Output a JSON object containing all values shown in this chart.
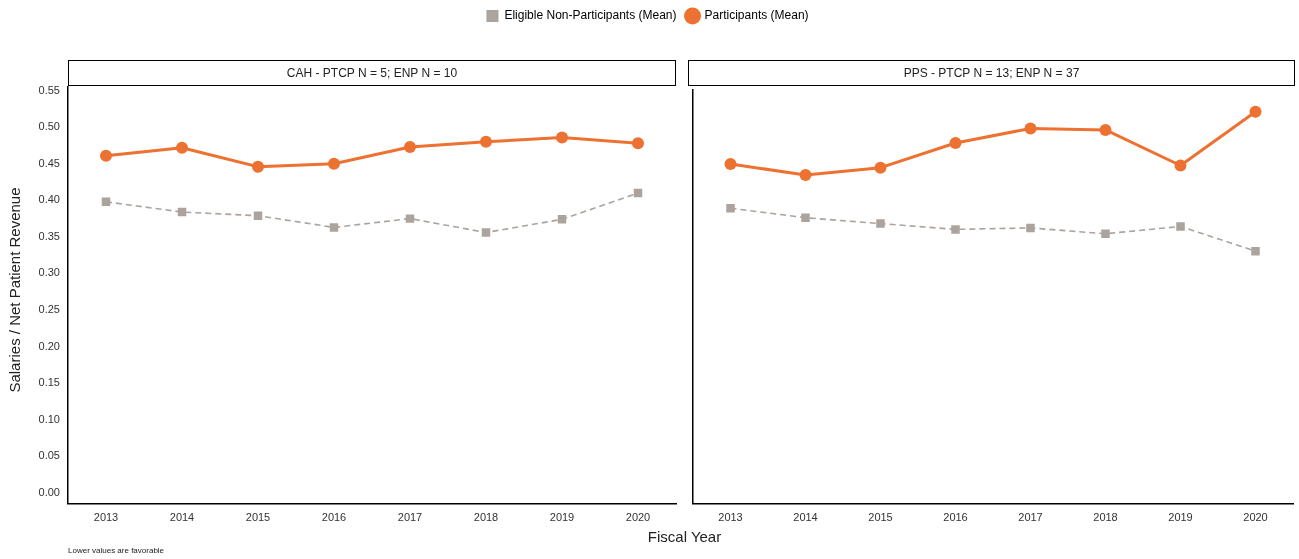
{
  "chart_data": [
    {
      "type": "line",
      "title": "CAH - PTCP N = 5; ENP N = 10",
      "xlabel": "Fiscal Year",
      "ylabel": "Salaries / Net Patient Revenue",
      "annotations": [
        "Lower values are favorable"
      ],
      "legend": "top",
      "grid": false,
      "categories": [
        "2013",
        "2014",
        "2015",
        "2016",
        "2017",
        "2018",
        "2019",
        "2020"
      ],
      "ylim": [
        -0.015,
        0.555
      ],
      "yticks": [
        {
          "value": 0,
          "label": "0.00"
        },
        {
          "value": 0.05,
          "label": "0.05"
        },
        {
          "value": 0.1,
          "label": "0.10"
        },
        {
          "value": 0.15,
          "label": "0.15"
        },
        {
          "value": 0.2,
          "label": "0.20"
        },
        {
          "value": 0.25,
          "label": "0.25"
        },
        {
          "value": 0.3,
          "label": "0.30"
        },
        {
          "value": 0.35,
          "label": "0.35"
        },
        {
          "value": 0.4,
          "label": "0.40"
        },
        {
          "value": 0.45,
          "label": "0.45"
        },
        {
          "value": 0.5,
          "label": "0.50"
        },
        {
          "value": 0.55,
          "label": "0.55"
        }
      ],
      "series": [
        {
          "name": "Eligible Non-Participants (Mean)",
          "color": "#aba39d",
          "marker": "square",
          "line_style": "dashed",
          "values": [
            0.398,
            0.384,
            0.379,
            0.363,
            0.375,
            0.356,
            0.374,
            0.41
          ]
        },
        {
          "name": "Participants (Mean)",
          "color": "#ed7130",
          "marker": "circle",
          "line_style": "solid",
          "values": [
            0.461,
            0.472,
            0.446,
            0.45,
            0.473,
            0.48,
            0.486,
            0.478
          ]
        }
      ]
    },
    {
      "type": "line",
      "title": "PPS - PTCP N = 13; ENP N = 37",
      "grid": false,
      "tick_labels": "x",
      "categories": [
        "2013",
        "2014",
        "2015",
        "2016",
        "2017",
        "2018",
        "2019",
        "2020"
      ],
      "ylim": [
        -0.015,
        0.555
      ],
      "series": [
        {
          "color": "#aba39d",
          "marker": "square",
          "line_style": "dashed",
          "values": [
            0.392,
            0.379,
            0.371,
            0.363,
            0.365,
            0.357,
            0.367,
            0.333
          ]
        },
        {
          "color": "#ed7130",
          "marker": "circle",
          "line_style": "solid",
          "values": [
            0.453,
            0.438,
            0.448,
            0.482,
            0.502,
            0.5,
            0.451,
            0.525
          ]
        }
      ]
    }
  ]
}
